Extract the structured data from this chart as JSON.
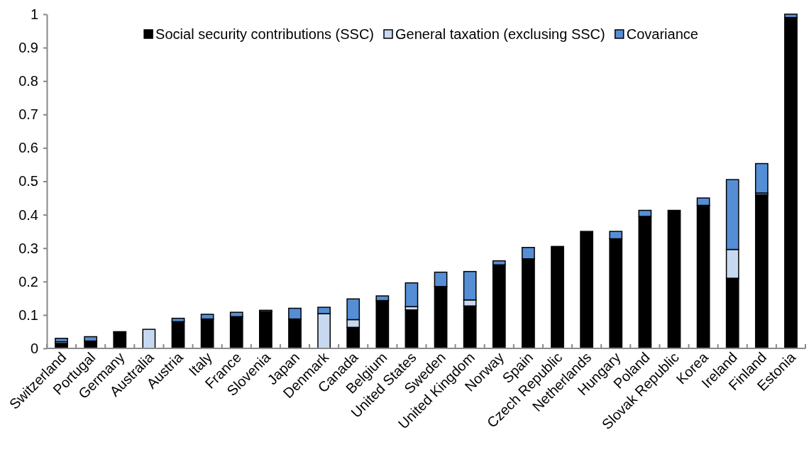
{
  "chart_data": {
    "type": "bar",
    "stacked": true,
    "legend": "top",
    "grid": false,
    "categories": [
      "Switzerland",
      "Portugal",
      "Germany",
      "Australia",
      "Austria",
      "Italy",
      "France",
      "Slovenia",
      "Japan",
      "Denmark",
      "Canada",
      "Belgium",
      "United States",
      "Sweden",
      "United Kingdom",
      "Norway",
      "Spain",
      "Czech Republic",
      "Netherlands",
      "Hungary",
      "Poland",
      "Slovak Republic",
      "Korea",
      "Ireland",
      "Finland",
      "Estonia"
    ],
    "series": [
      {
        "name": "Social security contributions (SSC)",
        "color": "#000000",
        "values": [
          0.015,
          0.022,
          0.047,
          0,
          0.08,
          0.088,
          0.095,
          0.11,
          0.085,
          0,
          0.063,
          0.143,
          0.115,
          0.185,
          0.127,
          0.25,
          0.268,
          0.305,
          0.35,
          0.328,
          0.395,
          0.413,
          0.428,
          0.21,
          0.46,
          0.99
        ]
      },
      {
        "name": "General taxation (exclusing SSC)",
        "color": "#c6d9f0",
        "values": [
          0.005,
          0,
          0,
          0.057,
          0,
          0,
          0,
          0,
          0.003,
          0.104,
          0.023,
          0,
          0.01,
          0,
          0.018,
          0,
          0,
          0,
          0,
          0,
          0,
          0,
          0,
          0.086,
          0.005,
          0
        ]
      },
      {
        "name": "Covariance",
        "color": "#558ed5",
        "values": [
          0.01,
          0.013,
          0.003,
          0,
          0.01,
          0.014,
          0.013,
          0.004,
          0.032,
          0.019,
          0.062,
          0.014,
          0.071,
          0.043,
          0.085,
          0.012,
          0.034,
          0,
          0,
          0.022,
          0.018,
          0,
          0.022,
          0.209,
          0.088,
          0.01
        ]
      }
    ],
    "ylim": [
      0,
      1
    ],
    "yticks": [
      0,
      0.1,
      0.2,
      0.3,
      0.4,
      0.5,
      0.6,
      0.7,
      0.8,
      0.9,
      1
    ]
  }
}
